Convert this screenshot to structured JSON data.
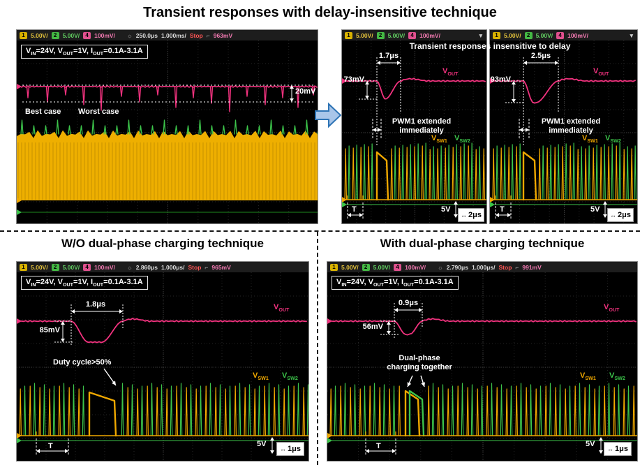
{
  "page": {
    "title": "Transient responses with delay-insensitive technique"
  },
  "panels": {
    "delay_banner": "Transient responses insensitive to delay",
    "wo_title": "W/O dual-phase charging technique",
    "with_title": "With dual-phase charging technique"
  },
  "common": {
    "settings": [
      [
        "V",
        "IN"
      ],
      [
        "=24V, V",
        "OUT"
      ],
      [
        "=1V, I",
        "OUT"
      ],
      [
        "=0.1A-3.1A",
        ""
      ]
    ],
    "labels": {
      "vout": [
        [
          "V",
          "OUT"
        ]
      ],
      "vsw1": [
        [
          "V",
          "SW1"
        ]
      ],
      "vsw2": [
        [
          "V",
          "SW2"
        ]
      ]
    },
    "scale_5v": "5V",
    "period": "T",
    "arrow": "↔"
  },
  "scopes": {
    "main": {
      "header": [
        {
          "badge": "1",
          "bg": "#d9b200",
          "fg": "#000"
        },
        {
          "text": "5.00V/",
          "color": "#e4c33c"
        },
        {
          "badge": "2",
          "bg": "#44b944",
          "fg": "#000"
        },
        {
          "text": "5.00V/",
          "color": "#62d062"
        },
        {
          "badge": "4",
          "bg": "#e0508e",
          "fg": "#000"
        },
        {
          "text": "100mV/",
          "color": "#f27ab2"
        },
        {
          "text": "☼",
          "color": "#9a9a9a",
          "gap": true
        },
        {
          "text": "250.0μs",
          "color": "#dddddd"
        },
        {
          "text": "1.000ms/",
          "color": "#dddddd"
        },
        {
          "text": "Stop",
          "color": "#ff5555"
        },
        {
          "text": "⌐",
          "color": "#bbbbbb"
        },
        {
          "text": "963mV",
          "color": "#f27ab2"
        }
      ],
      "best_case": "Best case",
      "worst_case": "Worst case",
      "ripple": "20mV"
    },
    "delay1": {
      "header": [
        {
          "badge": "1",
          "bg": "#d9b200",
          "fg": "#000"
        },
        {
          "text": "5.00V/",
          "color": "#e4c33c"
        },
        {
          "badge": "2",
          "bg": "#44b944",
          "fg": "#000"
        },
        {
          "text": "5.00V/",
          "color": "#62d062"
        },
        {
          "badge": "4",
          "bg": "#e0508e",
          "fg": "#000"
        },
        {
          "text": "100mV/",
          "color": "#f27ab2"
        },
        {
          "text": "▼",
          "color": "#cccccc",
          "end": true
        }
      ],
      "undershoot": "73mV",
      "recovery": "1.7μs",
      "note_line1": "PWM1 extended",
      "note_line2": "immediately",
      "time_scale": "2μs"
    },
    "delay2": {
      "header": [
        {
          "badge": "1",
          "bg": "#d9b200",
          "fg": "#000"
        },
        {
          "text": "5.00V/",
          "color": "#e4c33c"
        },
        {
          "badge": "2",
          "bg": "#44b944",
          "fg": "#000"
        },
        {
          "text": "5.00V/",
          "color": "#62d062"
        },
        {
          "badge": "4",
          "bg": "#e0508e",
          "fg": "#000"
        },
        {
          "text": "100mV/",
          "color": "#f27ab2"
        },
        {
          "text": "▼",
          "color": "#cccccc",
          "end": true
        }
      ],
      "undershoot": "93mV",
      "recovery": "2.5μs",
      "note_line1": "PWM1 extended",
      "note_line2": "immediately",
      "time_scale": "2μs"
    },
    "wo": {
      "header": [
        {
          "badge": "1",
          "bg": "#d9b200",
          "fg": "#000"
        },
        {
          "text": "5.00V/",
          "color": "#e4c33c"
        },
        {
          "badge": "2",
          "bg": "#44b944",
          "fg": "#000"
        },
        {
          "text": "5.00V/",
          "color": "#62d062"
        },
        {
          "badge": "4",
          "bg": "#e0508e",
          "fg": "#000"
        },
        {
          "text": "100mV/",
          "color": "#f27ab2"
        },
        {
          "text": "☼",
          "color": "#9a9a9a",
          "gap": true
        },
        {
          "text": "2.860μs",
          "color": "#dddddd"
        },
        {
          "text": "1.000μs/",
          "color": "#dddddd"
        },
        {
          "text": "Stop",
          "color": "#ff5555"
        },
        {
          "text": "⌐",
          "color": "#bbbbbb"
        },
        {
          "text": "965mV",
          "color": "#f27ab2"
        }
      ],
      "undershoot": "85mV",
      "recovery": "1.8μs",
      "note": "Duty cycle>50%",
      "time_scale": "1μs"
    },
    "withdp": {
      "header": [
        {
          "badge": "1",
          "bg": "#d9b200",
          "fg": "#000"
        },
        {
          "text": "5.00V/",
          "color": "#e4c33c"
        },
        {
          "badge": "2",
          "bg": "#44b944",
          "fg": "#000"
        },
        {
          "text": "5.00V/",
          "color": "#62d062"
        },
        {
          "badge": "4",
          "bg": "#e0508e",
          "fg": "#000"
        },
        {
          "text": "100mV/",
          "color": "#f27ab2"
        },
        {
          "text": "☼",
          "color": "#9a9a9a",
          "gap": true
        },
        {
          "text": "2.790μs",
          "color": "#dddddd"
        },
        {
          "text": "1.000μs/",
          "color": "#dddddd"
        },
        {
          "text": "Stop",
          "color": "#ff5555"
        },
        {
          "text": "⌐",
          "color": "#bbbbbb"
        },
        {
          "text": "991mV",
          "color": "#f27ab2"
        }
      ],
      "undershoot": "56mV",
      "recovery": "0.9μs",
      "note_line1": "Dual-phase",
      "note_line2": "charging together",
      "time_scale": "1μs"
    }
  },
  "colors": {
    "vout": "#f1327e",
    "vsw1": "#f0a800",
    "vsw2": "#3cc44a",
    "block": "#eeaf00",
    "annotation": "#ffffff",
    "arrow_fill": "#a9c6e9",
    "arrow_border": "#2e74b5"
  },
  "chart_data": [
    {
      "type": "line",
      "panel": "overview",
      "title": "Transient responses with delay-insensitive technique",
      "conditions": {
        "VIN": "24V",
        "VOUT": "1V",
        "IOUT": "0.1A-3.1A"
      },
      "series": [
        {
          "name": "VOUT",
          "color": "#f1327e",
          "description": "Output voltage with repeated load transients; deviation band from best case to worst case is 20mV"
        },
        {
          "name": "VSW1/VSW2",
          "color": "#f0a800",
          "description": "Dense switching-node activity over many periods"
        }
      ],
      "annotations": [
        "Best case",
        "Worst case",
        "20mV"
      ],
      "scale": {
        "ch1": "5.00V/div",
        "ch2": "5.00V/div",
        "ch4": "100mV/div",
        "time": "1.000ms/div",
        "delay": "250.0μs",
        "state": "Stop",
        "trigger": "963mV"
      },
      "ripple_worst_mV": 20
    },
    {
      "type": "line",
      "panel": "delay-insensitive-case-1",
      "undershoot_mV": 73,
      "recovery_time_us": 1.7,
      "annotation": "PWM1 extended immediately",
      "labels": [
        "VOUT",
        "VSW1",
        "VSW2",
        "T"
      ],
      "scale": {
        "sw": "5V",
        "time": "2μs"
      }
    },
    {
      "type": "line",
      "panel": "delay-insensitive-case-2",
      "undershoot_mV": 93,
      "recovery_time_us": 2.5,
      "annotation": "PWM1 extended immediately",
      "labels": [
        "VOUT",
        "VSW1",
        "VSW2",
        "T"
      ],
      "scale": {
        "sw": "5V",
        "time": "2μs"
      }
    },
    {
      "type": "line",
      "panel": "without-dual-phase-charging",
      "title": "W/O dual-phase charging technique",
      "conditions": {
        "VIN": "24V",
        "VOUT": "1V",
        "IOUT": "0.1A-3.1A"
      },
      "undershoot_mV": 85,
      "recovery_time_us": 1.8,
      "annotation": "Duty cycle>50%",
      "labels": [
        "VOUT",
        "VSW1",
        "VSW2",
        "T"
      ],
      "scale": {
        "sw": "5V",
        "time": "1μs",
        "ch4": "100mV/div",
        "delay": "2.860μs",
        "trigger": "965mV"
      }
    },
    {
      "type": "line",
      "panel": "with-dual-phase-charging",
      "title": "With dual-phase charging technique",
      "conditions": {
        "VIN": "24V",
        "VOUT": "1V",
        "IOUT": "0.1A-3.1A"
      },
      "undershoot_mV": 56,
      "recovery_time_us": 0.9,
      "annotation": "Dual-phase charging together",
      "labels": [
        "VOUT",
        "VSW1",
        "VSW2",
        "T"
      ],
      "scale": {
        "sw": "5V",
        "time": "1μs",
        "ch4": "100mV/div",
        "delay": "2.790μs",
        "trigger": "991mV"
      }
    }
  ]
}
